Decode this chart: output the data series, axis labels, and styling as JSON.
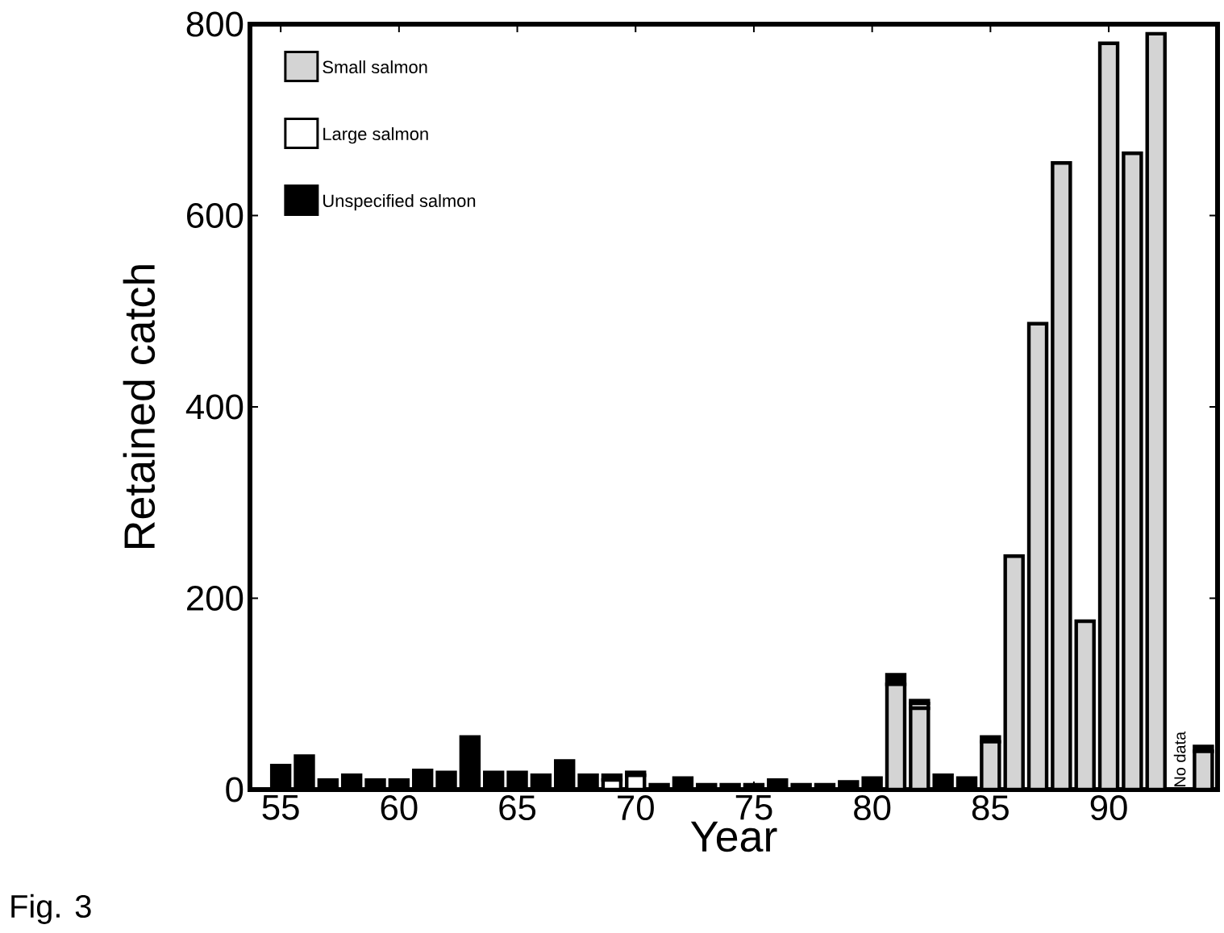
{
  "chart_data": {
    "type": "bar",
    "stacked": true,
    "xlabel": "Year",
    "ylabel": "Retained catch",
    "x": [
      55,
      56,
      57,
      58,
      59,
      60,
      61,
      62,
      63,
      64,
      65,
      66,
      67,
      68,
      69,
      70,
      71,
      72,
      73,
      74,
      75,
      76,
      77,
      78,
      79,
      80,
      81,
      82,
      83,
      84,
      85,
      86,
      87,
      88,
      89,
      90,
      91,
      92,
      93,
      94
    ],
    "series": [
      {
        "name": "Small salmon",
        "color": "#d4d4d4",
        "values": [
          0,
          0,
          0,
          0,
          0,
          0,
          0,
          0,
          0,
          0,
          0,
          0,
          0,
          0,
          0,
          0,
          0,
          0,
          0,
          0,
          0,
          0,
          0,
          0,
          0,
          0,
          110,
          85,
          0,
          0,
          50,
          244,
          487,
          655,
          176,
          780,
          665,
          790,
          null,
          40
        ]
      },
      {
        "name": "Large salmon",
        "color": "#ffffff",
        "values": [
          0,
          0,
          0,
          0,
          0,
          0,
          0,
          0,
          0,
          0,
          0,
          0,
          0,
          0,
          10,
          15,
          0,
          0,
          0,
          0,
          0,
          0,
          0,
          0,
          0,
          0,
          0,
          5,
          0,
          0,
          0,
          0,
          0,
          0,
          0,
          0,
          0,
          0,
          null,
          0
        ]
      },
      {
        "name": "Unspecified salmon",
        "color": "#000000",
        "values": [
          25,
          35,
          10,
          15,
          10,
          10,
          20,
          18,
          55,
          18,
          18,
          15,
          30,
          15,
          5,
          3,
          5,
          12,
          5,
          5,
          5,
          10,
          5,
          5,
          8,
          12,
          10,
          3,
          15,
          12,
          5,
          0,
          0,
          0,
          0,
          0,
          0,
          0,
          null,
          5
        ]
      }
    ],
    "xlim": [
      53.7,
      94.6
    ],
    "ylim": [
      0,
      800
    ],
    "xticks": [
      55,
      60,
      65,
      70,
      75,
      80,
      85,
      90
    ],
    "yticks": [
      0,
      200,
      400,
      600,
      800
    ],
    "legend": "top left",
    "annotations": [
      "No data",
      "Fig. 3"
    ]
  }
}
